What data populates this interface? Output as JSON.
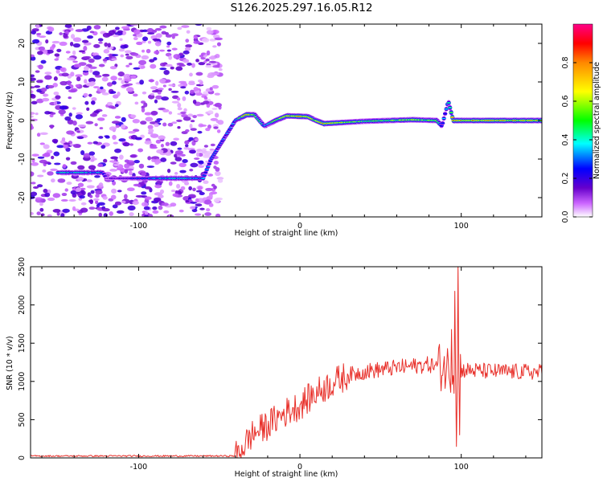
{
  "title": "S126.2025.297.16.05.R12",
  "chart_data": [
    {
      "type": "heatmap",
      "subtype": "spectrogram",
      "xlabel": "Height of straight line (km)",
      "ylabel": "Frequency (Hz)",
      "xlim": [
        -167,
        150
      ],
      "ylim": [
        -25,
        25
      ],
      "xticks": [
        "-100",
        "0",
        "100"
      ],
      "xtick_values": [
        -100,
        0,
        100
      ],
      "yticks": [
        "20",
        "10",
        "0",
        "-10",
        "-20"
      ],
      "ytick_values": [
        20,
        10,
        0,
        -10,
        -20
      ],
      "colorbar": {
        "label": "Normalized spectral amplitude",
        "range": [
          0,
          1
        ],
        "ticks": [
          "0.0",
          "0.2",
          "0.4",
          "0.6",
          "0.8"
        ],
        "tick_values": [
          0,
          0.2,
          0.4,
          0.6,
          0.8
        ]
      },
      "ridge": [
        {
          "x": -145,
          "y": -13.5,
          "amp": 0.45
        },
        {
          "x": -122,
          "y": -13.5,
          "amp": 0.4
        },
        {
          "x": -120,
          "y": -15,
          "amp": 0.15
        },
        {
          "x": -80,
          "y": -15,
          "amp": 0.45
        },
        {
          "x": -60,
          "y": -15,
          "amp": 0.35
        },
        {
          "x": -55,
          "y": -10,
          "amp": 0.3
        },
        {
          "x": -40,
          "y": 0,
          "amp": 0.35
        },
        {
          "x": -33,
          "y": 1.5,
          "amp": 0.85
        },
        {
          "x": -28,
          "y": 1.5,
          "amp": 0.7
        },
        {
          "x": -22,
          "y": -1.5,
          "amp": 0.4
        },
        {
          "x": -15,
          "y": 0,
          "amp": 0.6
        },
        {
          "x": -8,
          "y": 1.2,
          "amp": 0.8
        },
        {
          "x": 5,
          "y": 1,
          "amp": 0.9
        },
        {
          "x": 10,
          "y": 0,
          "amp": 0.7
        },
        {
          "x": 15,
          "y": -0.8,
          "amp": 0.9
        },
        {
          "x": 40,
          "y": -0.2,
          "amp": 0.55
        },
        {
          "x": 70,
          "y": 0.2,
          "amp": 0.7
        },
        {
          "x": 85,
          "y": 0,
          "amp": 0.6
        },
        {
          "x": 88,
          "y": -1.5,
          "amp": 0.3
        },
        {
          "x": 92,
          "y": 5,
          "amp": 0.45
        },
        {
          "x": 95,
          "y": 0,
          "amp": 0.85
        },
        {
          "x": 150,
          "y": 0,
          "amp": 0.8
        }
      ]
    },
    {
      "type": "line",
      "xlabel": "Height of straight line (km)",
      "ylabel": "SNR (10 * v/v)",
      "xlim": [
        -167,
        150
      ],
      "ylim": [
        0,
        2500
      ],
      "xticks": [
        "-100",
        "0",
        "100"
      ],
      "xtick_values": [
        -100,
        0,
        100
      ],
      "yticks": [
        "0",
        "500",
        "1000",
        "1500",
        "2000",
        "2500"
      ],
      "ytick_values": [
        0,
        500,
        1000,
        1500,
        2000,
        2500
      ],
      "series": [
        {
          "name": "SNR",
          "color": "#e8302a",
          "envelope": {
            "x": [
              -167,
              -40,
              -38,
              -30,
              -20,
              -10,
              0,
              10,
              20,
              30,
              40,
              60,
              80,
              100,
              120,
              150
            ],
            "y": [
              25,
              25,
              60,
              300,
              430,
              580,
              690,
              850,
              980,
              1080,
              1130,
              1180,
              1220,
              1150,
              1130,
              1120
            ]
          },
          "noise_amplitude": 90,
          "spikes": [
            {
              "x": 94,
              "y": 1680
            },
            {
              "x": 96,
              "y": 2180
            },
            {
              "x": 97,
              "y": 150
            },
            {
              "x": 98,
              "y": 2530
            },
            {
              "x": 99,
              "y": 300
            }
          ]
        }
      ]
    }
  ]
}
